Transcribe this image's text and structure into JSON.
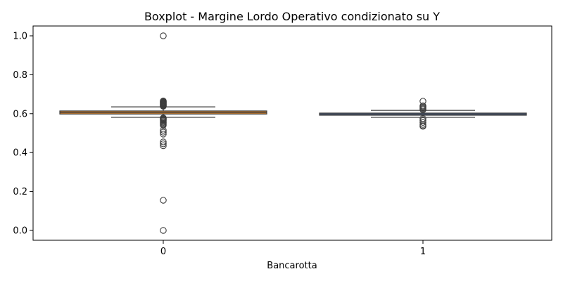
{
  "chart_data": {
    "type": "boxplot",
    "title": "Boxplot - Margine Lordo Operativo condizionato su Y",
    "xlabel": "Bancarotta",
    "ylabel": "",
    "categories": [
      "0",
      "1"
    ],
    "ylim": [
      -0.05,
      1.05
    ],
    "yticks": [
      0.0,
      0.2,
      0.4,
      0.6,
      0.8,
      1.0
    ],
    "ytick_labels": [
      "0.0",
      "0.2",
      "0.4",
      "0.6",
      "0.8",
      "1.0"
    ],
    "grid": false,
    "legend": "none",
    "boxes": [
      {
        "category": "0",
        "color": "#c97d2d",
        "whisker_low": 0.581,
        "q1": 0.598,
        "median": 0.606,
        "q3": 0.614,
        "whisker_high": 0.635,
        "outliers": [
          1.0,
          0.665,
          0.662,
          0.66,
          0.657,
          0.655,
          0.652,
          0.65,
          0.648,
          0.645,
          0.643,
          0.64,
          0.638,
          0.578,
          0.575,
          0.572,
          0.568,
          0.565,
          0.56,
          0.555,
          0.55,
          0.545,
          0.54,
          0.515,
          0.505,
          0.495,
          0.455,
          0.445,
          0.435,
          0.155,
          0.0
        ]
      },
      {
        "category": "1",
        "color": "#4c72b0",
        "whisker_low": 0.581,
        "q1": 0.592,
        "median": 0.598,
        "q3": 0.603,
        "whisker_high": 0.617,
        "outliers": [
          0.664,
          0.64,
          0.635,
          0.63,
          0.625,
          0.62,
          0.575,
          0.565,
          0.555,
          0.545,
          0.538,
          0.535
        ]
      }
    ]
  }
}
